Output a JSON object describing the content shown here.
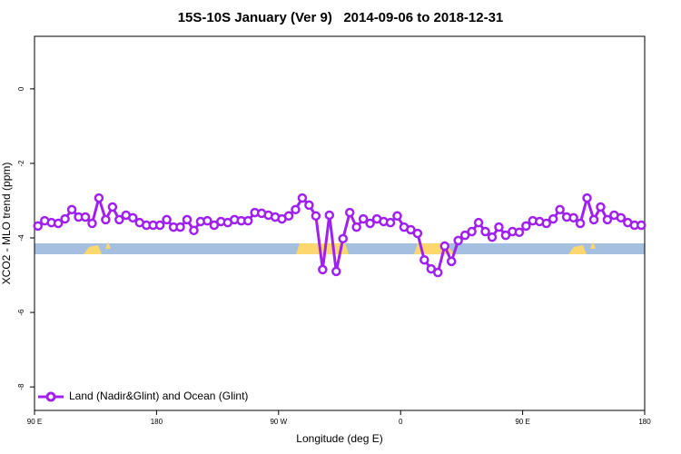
{
  "chart_data": {
    "type": "line",
    "title": "15S-10S January (Ver 9)   2014-09-06 to 2018-12-31",
    "xlabel": "Longitude (deg E)",
    "ylabel": "XCO2 - MLO trend (ppm)",
    "xlim": [
      90,
      540
    ],
    "ylim": [
      -8.63,
      1.41
    ],
    "xticks": [
      {
        "value": 90,
        "label": "90 E"
      },
      {
        "value": 180,
        "label": "180"
      },
      {
        "value": 270,
        "label": "90 W"
      },
      {
        "value": 360,
        "label": "0"
      },
      {
        "value": 450,
        "label": "90 E"
      },
      {
        "value": 540,
        "label": "180"
      }
    ],
    "yticks": [
      0,
      -2,
      -4,
      -6,
      -8
    ],
    "legend": "bottomleft",
    "x": [
      92.5,
      97.5,
      102.5,
      107.5,
      112.5,
      117.5,
      122.5,
      127.5,
      132.5,
      137.5,
      142.5,
      147.5,
      152.5,
      157.5,
      162.5,
      167.5,
      172.5,
      177.5,
      182.5,
      187.5,
      192.5,
      197.5,
      202.5,
      207.5,
      212.5,
      217.5,
      222.5,
      227.5,
      232.5,
      237.5,
      242.5,
      247.5,
      252.5,
      257.5,
      262.5,
      267.5,
      272.5,
      277.5,
      282.5,
      287.5,
      292.5,
      297.5,
      302.5,
      307.5,
      312.5,
      317.5,
      322.5,
      327.5,
      332.5,
      337.5,
      342.5,
      347.5,
      352.5,
      357.5,
      362.5,
      367.5,
      372.5,
      377.5,
      382.5,
      387.5,
      392.5,
      397.5,
      402.5,
      407.5,
      412.5,
      417.5,
      422.5,
      427.5,
      432.5,
      437.5,
      442.5,
      447.5,
      452.5,
      457.5,
      462.5,
      467.5,
      472.5,
      477.5,
      482.5,
      487.5,
      492.5,
      497.5,
      502.5,
      507.5,
      512.5,
      517.5,
      522.5,
      527.5,
      532.5,
      537.5
    ],
    "series": [
      {
        "name": "Land (Nadir&Glint) and Ocean (Glint)",
        "color": "#a020f0",
        "values": [
          -3.68,
          -3.54,
          -3.59,
          -3.61,
          -3.49,
          -3.24,
          -3.44,
          -3.44,
          -3.61,
          -2.93,
          -3.51,
          -3.17,
          -3.51,
          -3.39,
          -3.46,
          -3.59,
          -3.66,
          -3.66,
          -3.66,
          -3.51,
          -3.71,
          -3.71,
          -3.51,
          -3.8,
          -3.56,
          -3.54,
          -3.66,
          -3.56,
          -3.59,
          -3.51,
          -3.54,
          -3.54,
          -3.32,
          -3.34,
          -3.39,
          -3.44,
          -3.49,
          -3.41,
          -3.24,
          -2.93,
          -3.12,
          -3.41,
          -4.85,
          -3.39,
          -4.9,
          -4.02,
          -3.32,
          -3.71,
          -3.49,
          -3.61,
          -3.49,
          -3.56,
          -3.59,
          -3.41,
          -3.71,
          -3.78,
          -3.88,
          -4.59,
          -4.83,
          -4.93,
          -4.22,
          -4.63,
          -4.07,
          -3.93,
          -3.83,
          -3.59,
          -3.83,
          -3.98,
          -3.71,
          -3.93,
          -3.83,
          -3.85,
          -3.68,
          -3.54,
          -3.56,
          -3.61,
          -3.49,
          -3.24,
          -3.44,
          -3.46,
          -3.61,
          -2.93,
          -3.51,
          -3.17,
          -3.51,
          -3.39,
          -3.46,
          -3.59,
          -3.66,
          -3.66
        ]
      }
    ]
  }
}
